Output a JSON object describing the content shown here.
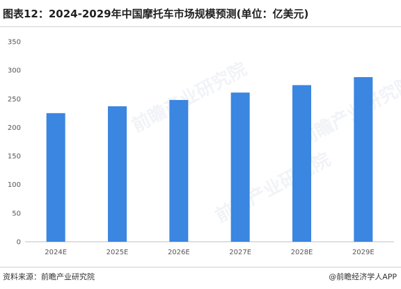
{
  "header": {
    "title": "图表12：2024-2029年中国摩托车市场规模预测(单位：亿美元)"
  },
  "footer": {
    "source": "资料来源：前瞻产业研究院",
    "brand": "@前瞻经济学人APP"
  },
  "watermark": {
    "text": "前瞻产业研究院"
  },
  "colors": {
    "bar": "#3a86e0",
    "axis": "#bfbfbf"
  },
  "chart_data": {
    "type": "bar",
    "title": "图表12：2024-2029年中国摩托车市场规模预测(单位：亿美元)",
    "categories": [
      "2024E",
      "2025E",
      "2026E",
      "2027E",
      "2028E",
      "2029E"
    ],
    "values": [
      225,
      237,
      248,
      261,
      274,
      288
    ],
    "ylim": [
      0,
      350
    ],
    "yticks": [
      0,
      50,
      100,
      150,
      200,
      250,
      300,
      350
    ],
    "grid": false,
    "legend": "none"
  }
}
